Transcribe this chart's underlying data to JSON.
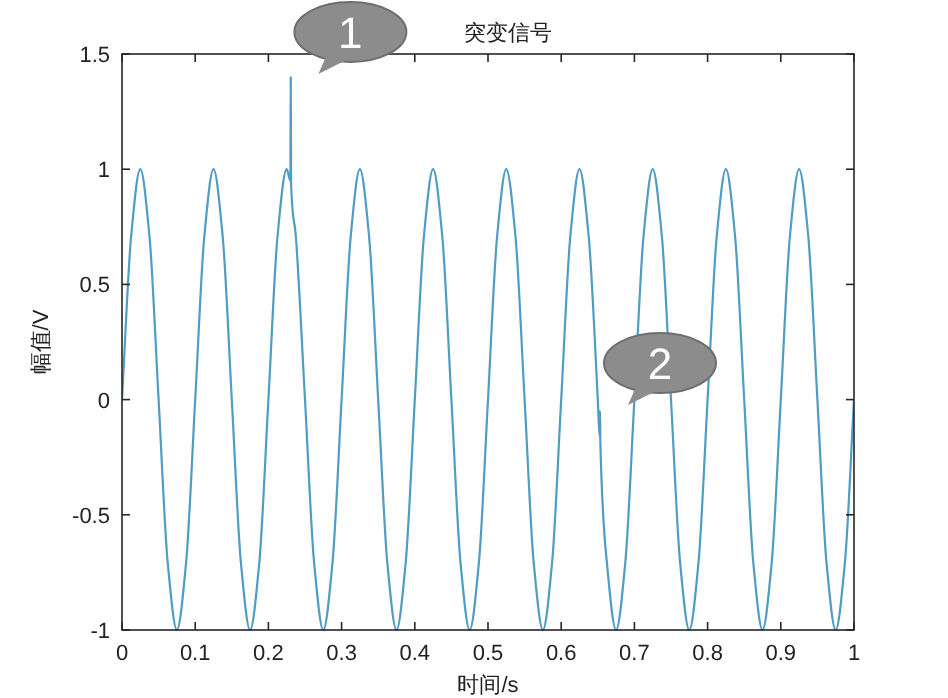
{
  "chart_data": {
    "type": "line",
    "title": "突变信号",
    "xlabel": "时间/s",
    "ylabel": "幅值/V",
    "x": [
      0,
      0.0125,
      0.025,
      0.0375,
      0.05,
      0.0625,
      0.075,
      0.0875,
      0.1,
      0.1125,
      0.125,
      0.1375,
      0.15,
      0.1625,
      0.175,
      0.1875,
      0.2,
      0.2125,
      0.225,
      0.23,
      0.2305,
      0.231,
      0.2375,
      0.25,
      0.2625,
      0.275,
      0.2875,
      0.3,
      0.3125,
      0.325,
      0.3375,
      0.35,
      0.3625,
      0.375,
      0.3875,
      0.4,
      0.4125,
      0.425,
      0.4375,
      0.45,
      0.4625,
      0.475,
      0.4875,
      0.5,
      0.5125,
      0.525,
      0.5375,
      0.55,
      0.5625,
      0.575,
      0.5875,
      0.6,
      0.6125,
      0.625,
      0.6375,
      0.65,
      0.6525,
      0.653,
      0.6535,
      0.6625,
      0.675,
      0.6875,
      0.7,
      0.7125,
      0.725,
      0.7375,
      0.75,
      0.7625,
      0.775,
      0.7875,
      0.8,
      0.8125,
      0.825,
      0.8375,
      0.85,
      0.8625,
      0.875,
      0.8875,
      0.9,
      0.9125,
      0.925,
      0.9375,
      0.95,
      0.9625,
      0.975,
      0.9875,
      1
    ],
    "series": [
      {
        "color": "#4f9cc5",
        "values": [
          0,
          0.71,
          1,
          0.71,
          0,
          -0.71,
          -1,
          -0.71,
          0,
          0.71,
          1,
          0.71,
          0,
          -0.71,
          -1,
          -0.71,
          0,
          0.71,
          1,
          0.95,
          1.4,
          0.94,
          0.71,
          0,
          -0.71,
          -1,
          -0.71,
          0,
          0.71,
          1,
          0.71,
          0,
          -0.71,
          -1,
          -0.71,
          0,
          0.71,
          1,
          0.71,
          0,
          -0.71,
          -1,
          -0.71,
          0,
          0.71,
          1,
          0.71,
          0,
          -0.71,
          -1,
          -0.71,
          0,
          0.71,
          1,
          0.71,
          0,
          -0.16,
          -0.05,
          -0.19,
          -0.71,
          -1,
          -0.71,
          0,
          0.71,
          1,
          0.71,
          0,
          -0.71,
          -1,
          -0.71,
          0,
          0.71,
          1,
          0.71,
          0,
          -0.71,
          -1,
          -0.71,
          0,
          0.71,
          1,
          0.71,
          0,
          -0.71,
          -1,
          -0.71,
          0
        ]
      }
    ],
    "xlim": [
      0,
      1
    ],
    "ylim": [
      -1,
      1.5
    ],
    "xticks": [
      0,
      0.1,
      0.2,
      0.3,
      0.4,
      0.5,
      0.6,
      0.7,
      0.8,
      0.9,
      1
    ],
    "yticks": [
      -1,
      -0.5,
      0,
      0.5,
      1,
      1.5
    ],
    "annotations": [
      {
        "text": "1",
        "x": 0.23,
        "y": 1.4
      },
      {
        "text": "2",
        "x": 0.653,
        "y": -0.05
      }
    ]
  }
}
